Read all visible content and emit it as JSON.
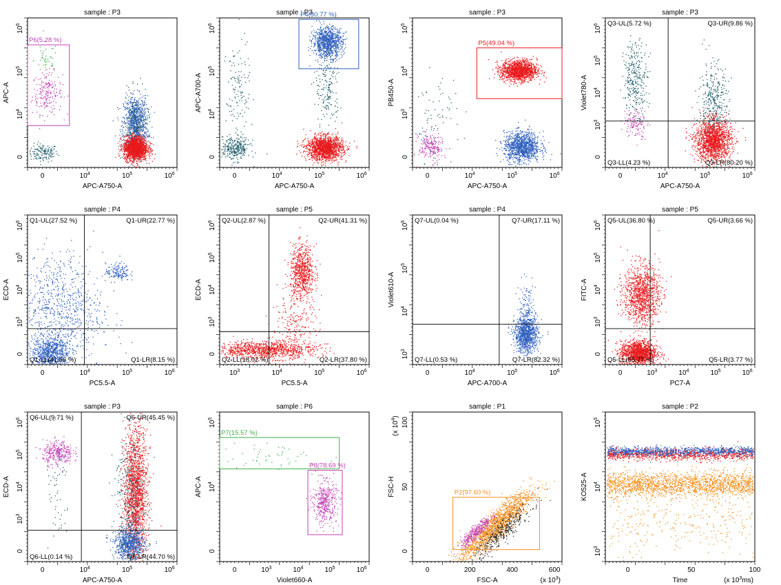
{
  "colors": {
    "red": "#e8191c",
    "blue": "#2f5fbe",
    "teal": "#1f5c6a",
    "magenta": "#c23fb4",
    "green": "#3fb04a",
    "orange": "#f5901e",
    "black": "#222222"
  },
  "chart_data": [
    {
      "type": "scatter",
      "title": "sample : P3",
      "xlabel": "APC-A750-A",
      "ylabel": "APC-A",
      "x_ticks": [
        "0",
        "10^4",
        "10^5",
        "10^6"
      ],
      "y_ticks": [
        "0",
        "10^4",
        "10^5",
        "10^6"
      ],
      "gates": [
        {
          "label": "P6(5.28 %)",
          "color": "magenta",
          "x": [
            -0.05,
            0.28
          ],
          "y": [
            0.28,
            0.82
          ]
        }
      ],
      "clusters": [
        {
          "color": "teal",
          "cx": 0.1,
          "cy": 0.1,
          "sx": 0.05,
          "sy": 0.03,
          "n": 150
        },
        {
          "color": "magenta",
          "cx": 0.13,
          "cy": 0.5,
          "sx": 0.05,
          "sy": 0.07,
          "n": 200
        },
        {
          "color": "green",
          "cx": 0.12,
          "cy": 0.72,
          "sx": 0.04,
          "sy": 0.06,
          "n": 45
        },
        {
          "color": "blue",
          "cx": 0.72,
          "cy": 0.3,
          "sx": 0.04,
          "sy": 0.09,
          "n": 800
        },
        {
          "color": "teal",
          "cx": 0.72,
          "cy": 0.25,
          "sx": 0.04,
          "sy": 0.12,
          "n": 300
        },
        {
          "color": "red",
          "cx": 0.72,
          "cy": 0.13,
          "sx": 0.04,
          "sy": 0.04,
          "n": 1600
        }
      ]
    },
    {
      "type": "scatter",
      "title": "sample : P3",
      "xlabel": "APC-A750-A",
      "ylabel": "APC-A700-A",
      "x_ticks": [
        "0",
        "10^4",
        "10^5",
        "10^6"
      ],
      "y_ticks": [
        "0",
        "10^4",
        "10^5",
        "10^6"
      ],
      "gates": [
        {
          "label": "P4(30.77 %)",
          "color": "blue",
          "x": [
            0.53,
            0.93
          ],
          "y": [
            0.66,
            0.99
          ]
        }
      ],
      "clusters": [
        {
          "color": "teal",
          "cx": 0.1,
          "cy": 0.13,
          "sx": 0.05,
          "sy": 0.04,
          "n": 300
        },
        {
          "color": "teal",
          "cx": 0.12,
          "cy": 0.5,
          "sx": 0.04,
          "sy": 0.18,
          "n": 130
        },
        {
          "color": "blue",
          "cx": 0.72,
          "cy": 0.84,
          "sx": 0.05,
          "sy": 0.05,
          "n": 900
        },
        {
          "color": "teal",
          "cx": 0.72,
          "cy": 0.55,
          "sx": 0.04,
          "sy": 0.15,
          "n": 200
        },
        {
          "color": "red",
          "cx": 0.7,
          "cy": 0.13,
          "sx": 0.06,
          "sy": 0.04,
          "n": 1500
        }
      ]
    },
    {
      "type": "scatter",
      "title": "sample : P3",
      "xlabel": "APC-A750-A",
      "ylabel": "PB450-A",
      "x_ticks": [
        "0",
        "10^4",
        "10^5",
        "10^6"
      ],
      "y_ticks": [
        "0",
        "10^3",
        "10^4",
        "10^5"
      ],
      "gates": [
        {
          "label": "P5(49.04 %)",
          "color": "red",
          "x": [
            0.43,
            1.0
          ],
          "y": [
            0.46,
            0.8
          ]
        }
      ],
      "clusters": [
        {
          "color": "red",
          "cx": 0.71,
          "cy": 0.65,
          "sx": 0.06,
          "sy": 0.035,
          "n": 1300
        },
        {
          "color": "blue",
          "cx": 0.73,
          "cy": 0.14,
          "sx": 0.06,
          "sy": 0.05,
          "n": 1100
        },
        {
          "color": "magenta",
          "cx": 0.12,
          "cy": 0.14,
          "sx": 0.04,
          "sy": 0.05,
          "n": 200
        },
        {
          "color": "teal",
          "cx": 0.15,
          "cy": 0.3,
          "sx": 0.08,
          "sy": 0.15,
          "n": 80
        }
      ]
    },
    {
      "type": "scatter",
      "title": "sample : P3",
      "xlabel": "APC-A750-A",
      "ylabel": "Violet780-A",
      "x_ticks": [
        "0",
        "10^4",
        "10^5",
        "10^6"
      ],
      "y_ticks": [
        "0",
        "10^3",
        "10^4",
        "10^5",
        "10^6"
      ],
      "quadrants": {
        "x": 0.42,
        "y": 0.31,
        "ul": "Q3-UL(5.72 %)",
        "ur": "Q3-UR(9.86 %)",
        "ll": "Q3-LL(4.23 %)",
        "lr": "Q3-LR(80.20 %)"
      },
      "clusters": [
        {
          "color": "teal",
          "cx": 0.2,
          "cy": 0.6,
          "sx": 0.04,
          "sy": 0.12,
          "n": 300
        },
        {
          "color": "magenta",
          "cx": 0.2,
          "cy": 0.3,
          "sx": 0.04,
          "sy": 0.05,
          "n": 120
        },
        {
          "color": "teal",
          "cx": 0.72,
          "cy": 0.4,
          "sx": 0.05,
          "sy": 0.15,
          "n": 400
        },
        {
          "color": "red",
          "cx": 0.72,
          "cy": 0.18,
          "sx": 0.06,
          "sy": 0.07,
          "n": 1500
        }
      ]
    },
    {
      "type": "scatter",
      "title": "sample : P4",
      "xlabel": "PC5.5-A",
      "ylabel": "ECD-A",
      "x_ticks": [
        "0",
        "10^4",
        "10^5",
        "10^6"
      ],
      "y_ticks": [
        "0",
        "10^3",
        "10^4",
        "10^5",
        "10^6"
      ],
      "quadrants": {
        "x": 0.38,
        "y": 0.24,
        "ul": "Q1-UL(27.52 %)",
        "ur": "Q1-UR(22.77 %)",
        "ll": "Q1-LL(41.56 %)",
        "lr": "Q1-LR(8.15 %)"
      },
      "clusters": [
        {
          "color": "blue",
          "cx": 0.15,
          "cy": 0.08,
          "sx": 0.06,
          "sy": 0.05,
          "n": 700
        },
        {
          "color": "blue",
          "cx": 0.2,
          "cy": 0.35,
          "sx": 0.15,
          "sy": 0.2,
          "n": 900
        },
        {
          "color": "blue",
          "cx": 0.6,
          "cy": 0.62,
          "sx": 0.04,
          "sy": 0.03,
          "n": 150
        }
      ]
    },
    {
      "type": "scatter",
      "title": "sample : P5",
      "xlabel": "PC5.5-A",
      "ylabel": "ECD-A",
      "x_ticks": [
        "10^3",
        "10^4",
        "10^5",
        "10^6"
      ],
      "y_ticks": [
        "0",
        "10^3",
        "10^4",
        "10^5",
        "10^6"
      ],
      "quadrants": {
        "x": 0.33,
        "y": 0.22,
        "ul": "Q2-UL(2.87 %)",
        "ur": "Q2-UR(41.31 %)",
        "ll": "Q2-LL(18.02 %)",
        "lr": "Q2-LR(37.80 %)"
      },
      "clusters": [
        {
          "color": "red",
          "cx": 0.55,
          "cy": 0.62,
          "sx": 0.04,
          "sy": 0.09,
          "n": 700
        },
        {
          "color": "red",
          "cx": 0.3,
          "cy": 0.1,
          "sx": 0.17,
          "sy": 0.03,
          "n": 1000
        },
        {
          "color": "red",
          "cx": 0.5,
          "cy": 0.25,
          "sx": 0.08,
          "sy": 0.1,
          "n": 200
        }
      ]
    },
    {
      "type": "scatter",
      "title": "sample : P4",
      "xlabel": "APC-A700-A",
      "ylabel": "Violet610-A",
      "x_ticks": [
        "0",
        "10^4",
        "10^5",
        "10^6"
      ],
      "y_ticks": [
        "10^3",
        "10^4",
        "10^5",
        "10^6"
      ],
      "quadrants": {
        "x": 0.58,
        "y": 0.27,
        "ul": "Q7-UL(0.04 %)",
        "ur": "Q7-UR(17.11 %)",
        "ll": "Q7-LL(0.53 %)",
        "lr": "Q7-LR(82.32 %)"
      },
      "clusters": [
        {
          "color": "blue",
          "cx": 0.76,
          "cy": 0.2,
          "sx": 0.04,
          "sy": 0.06,
          "n": 900
        },
        {
          "color": "blue",
          "cx": 0.76,
          "cy": 0.35,
          "sx": 0.03,
          "sy": 0.1,
          "n": 150
        }
      ]
    },
    {
      "type": "scatter",
      "title": "sample : P5",
      "xlabel": "PC7-A",
      "ylabel": "FITC-A",
      "x_ticks": [
        "0",
        "10^3",
        "10^4",
        "10^5",
        "10^6"
      ],
      "y_ticks": [
        "0",
        "10^3",
        "10^4",
        "10^5",
        "10^6"
      ],
      "quadrants": {
        "x": 0.3,
        "y": 0.24,
        "ul": "Q5-UL(36.80 %)",
        "ur": "Q5-UR(3.66 %)",
        "ll": "Q5-LL(55.77 %)",
        "lr": "Q5-LR(3.77 %)"
      },
      "clusters": [
        {
          "color": "red",
          "cx": 0.24,
          "cy": 0.47,
          "sx": 0.06,
          "sy": 0.1,
          "n": 1100
        },
        {
          "color": "red",
          "cx": 0.22,
          "cy": 0.08,
          "sx": 0.06,
          "sy": 0.04,
          "n": 1300
        }
      ]
    },
    {
      "type": "scatter",
      "title": "sample : P3",
      "xlabel": "APC-A750-A",
      "ylabel": "ECD-A",
      "x_ticks": [
        "0",
        "10^4",
        "10^5",
        "10^6"
      ],
      "y_ticks": [
        "0",
        "10^3",
        "10^4",
        "10^5",
        "10^6"
      ],
      "quadrants": {
        "x": 0.36,
        "y": 0.21,
        "ul": "Q6-UL(9.71 %)",
        "ur": "Q6-UR(45.45 %)",
        "ll": "Q6-LL(0.14 %)",
        "lr": "Q6-LR(44.70 %)"
      },
      "clusters": [
        {
          "color": "magenta",
          "cx": 0.2,
          "cy": 0.73,
          "sx": 0.05,
          "sy": 0.04,
          "n": 300
        },
        {
          "color": "teal",
          "cx": 0.2,
          "cy": 0.45,
          "sx": 0.04,
          "sy": 0.2,
          "n": 60
        },
        {
          "color": "red",
          "cx": 0.72,
          "cy": 0.45,
          "sx": 0.04,
          "sy": 0.23,
          "n": 1700
        },
        {
          "color": "blue",
          "cx": 0.68,
          "cy": 0.12,
          "sx": 0.05,
          "sy": 0.05,
          "n": 700
        },
        {
          "color": "teal",
          "cx": 0.68,
          "cy": 0.4,
          "sx": 0.05,
          "sy": 0.25,
          "n": 350
        }
      ]
    },
    {
      "type": "scatter",
      "title": "sample : P6",
      "xlabel": "Violet660-A",
      "ylabel": "APC-A",
      "x_ticks": [
        "0",
        "10^3",
        "10^4",
        "10^5",
        "10^6"
      ],
      "y_ticks": [
        "0",
        "10^4",
        "10^5"
      ],
      "gates": [
        {
          "label": "P7(15.57 %)",
          "color": "green",
          "x": [
            0.0,
            0.8
          ],
          "y": [
            0.62,
            0.83
          ]
        },
        {
          "label": "P8(78.69 %)",
          "color": "magenta",
          "x": [
            0.59,
            0.82
          ],
          "y": [
            0.18,
            0.61
          ]
        }
      ],
      "clusters": [
        {
          "color": "magenta",
          "cx": 0.7,
          "cy": 0.4,
          "sx": 0.04,
          "sy": 0.07,
          "n": 400
        },
        {
          "color": "green",
          "cx": 0.3,
          "cy": 0.7,
          "sx": 0.2,
          "sy": 0.05,
          "n": 50
        }
      ]
    },
    {
      "type": "scatter",
      "title": "sample : P1",
      "xlabel": "FSC-A",
      "ylabel": "FSC-H",
      "x_unit": "(x 10^3)",
      "y_unit": "(x 10^4)",
      "x_ticks": [
        "0",
        "200",
        "400",
        "600"
      ],
      "y_ticks": [
        "0",
        "50",
        "100"
      ],
      "gates": [
        {
          "label": "P2(97.60 %)",
          "color": "orange",
          "x": [
            0.27,
            0.85
          ],
          "y": [
            0.08,
            0.43
          ]
        }
      ],
      "clusters": [
        {
          "color": "orange",
          "cx": 0.55,
          "cy": 0.24,
          "sx": 0.12,
          "sy": 0.05,
          "n": 1600,
          "slope": 0.4
        },
        {
          "color": "magenta",
          "cx": 0.42,
          "cy": 0.2,
          "sx": 0.05,
          "sy": 0.025,
          "n": 300,
          "slope": 0.4
        },
        {
          "color": "black",
          "cx": 0.6,
          "cy": 0.2,
          "sx": 0.1,
          "sy": 0.04,
          "n": 350,
          "slope": 0.4
        }
      ]
    },
    {
      "type": "scatter",
      "title": "sample : P2",
      "xlabel": "Time",
      "ylabel": "KO525-A",
      "x_unit": "(x 10^3ms)",
      "x_ticks": [
        "0",
        "50",
        "100"
      ],
      "y_ticks": [
        "10^3",
        "10^4",
        "10^5"
      ],
      "clusters": [
        {
          "color": "red",
          "cx": 0.5,
          "cy": 0.72,
          "sx": 0.3,
          "sy": 0.02,
          "n": 1000,
          "uniform": true
        },
        {
          "color": "blue",
          "cx": 0.5,
          "cy": 0.74,
          "sx": 0.3,
          "sy": 0.015,
          "n": 900,
          "uniform": true
        },
        {
          "color": "orange",
          "cx": 0.5,
          "cy": 0.52,
          "sx": 0.3,
          "sy": 0.04,
          "n": 1800,
          "uniform": true
        },
        {
          "color": "orange",
          "cx": 0.5,
          "cy": 0.25,
          "sx": 0.3,
          "sy": 0.12,
          "n": 300,
          "uniform": true
        }
      ]
    }
  ]
}
